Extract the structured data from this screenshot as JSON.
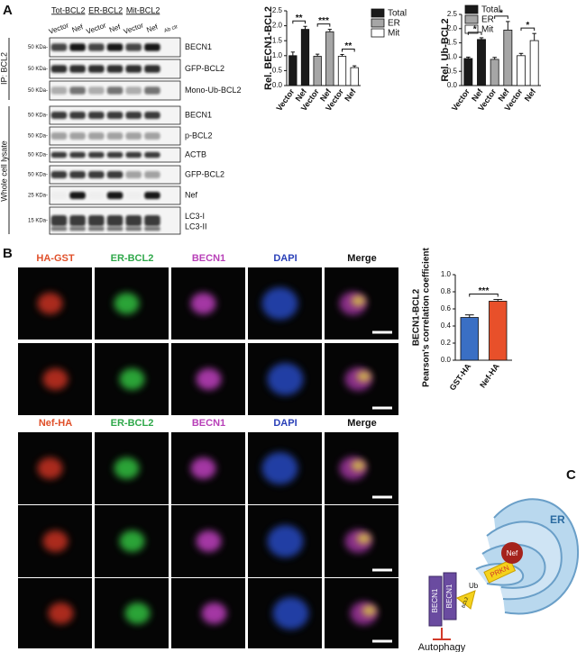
{
  "panel_labels": [
    "A",
    "B",
    "C"
  ],
  "blot": {
    "groups": [
      "Tot-BCL2",
      "ER-BCL2",
      "Mit-BCL2"
    ],
    "lanes": [
      "Vector",
      "Nef",
      "Vector",
      "Nef",
      "Vector",
      "Nef",
      "Ab ctr"
    ],
    "ip_label": "IP: BCL2",
    "lysate_label": "Whole cell lysate",
    "ip_rows": [
      {
        "mw": "50 KDa-",
        "label": "BECN1"
      },
      {
        "mw": "50 KDa-",
        "label": "GFP-BCL2"
      },
      {
        "mw": "50 KDa-",
        "label": "Mono-Ub-BCL2"
      }
    ],
    "lysate_rows": [
      {
        "mw": "50 KDa-",
        "label": "BECN1"
      },
      {
        "mw": "50 KDa-",
        "label": "p-BCL2"
      },
      {
        "mw": "50 KDa-",
        "label": "ACTB"
      },
      {
        "mw": "50 KDa-",
        "label": "GFP-BCL2"
      },
      {
        "mw": "25 KDa-",
        "label": "Nef"
      },
      {
        "mw": "15 KDa-",
        "label": "LC3-I"
      }
    ],
    "extra_label": "LC3-II"
  },
  "chart_data": [
    {
      "type": "bar",
      "ylabel": "Rel. BECN1-BCL2",
      "categories": [
        "Vector",
        "Nef",
        "Vector",
        "Nef",
        "Vector",
        "Nef"
      ],
      "series": [
        {
          "name": "Total",
          "color": "#1a1a1a",
          "values": [
            1.0,
            1.88,
            null,
            null,
            null,
            null
          ],
          "errors": [
            0.12,
            0.1,
            null,
            null,
            null,
            null
          ]
        },
        {
          "name": "ER",
          "color": "#a6a6a6",
          "values": [
            null,
            null,
            0.98,
            1.8,
            null,
            null
          ],
          "errors": [
            null,
            null,
            0.07,
            0.08,
            null,
            null
          ]
        },
        {
          "name": "Mit",
          "color": "#ffffff",
          "values": [
            null,
            null,
            null,
            null,
            0.98,
            0.6
          ],
          "errors": [
            null,
            null,
            null,
            null,
            0.06,
            0.06
          ]
        }
      ],
      "ylim": [
        0,
        2.5
      ],
      "yticks": [
        {
          "value": 0,
          "label": "0.0"
        },
        0.5,
        {
          "value": 1,
          "label": "1.0"
        },
        1.5,
        {
          "value": 2,
          "label": "2.0"
        },
        2.5
      ],
      "annotations": [
        "**",
        "***",
        "**"
      ]
    },
    {
      "type": "bar",
      "ylabel": "Rel. Ub-BCL2",
      "categories": [
        "Vector",
        "Nef",
        "Vector",
        "Nef",
        "Vector",
        "Nef"
      ],
      "series": [
        {
          "name": "Total",
          "color": "#1a1a1a",
          "values": [
            0.95,
            1.62,
            null,
            null,
            null,
            null
          ],
          "errors": [
            0.05,
            0.06,
            null,
            null,
            null,
            null
          ]
        },
        {
          "name": "ER",
          "color": "#a6a6a6",
          "values": [
            null,
            null,
            0.92,
            1.95,
            null,
            null
          ],
          "errors": [
            null,
            null,
            0.07,
            0.3,
            null,
            null
          ]
        },
        {
          "name": "Mit",
          "color": "#ffffff",
          "values": [
            null,
            null,
            null,
            null,
            1.05,
            1.58
          ],
          "errors": [
            null,
            null,
            null,
            null,
            0.08,
            0.25
          ]
        }
      ],
      "ylim": [
        0,
        2.5
      ],
      "yticks": [
        {
          "value": 0,
          "label": "0.0"
        },
        0.5,
        {
          "value": 1,
          "label": "1.0"
        },
        1.5,
        {
          "value": 2,
          "label": "2.0"
        },
        2.5
      ],
      "annotations": [
        "*",
        "*",
        "*"
      ]
    },
    {
      "type": "bar",
      "ylabel": [
        "BECN1-BCL2",
        "Pearson's correlation coefficient"
      ],
      "categories": [
        "GST-HA",
        "Nef-HA"
      ],
      "values": [
        0.5,
        0.69
      ],
      "errors": [
        0.03,
        0.02
      ],
      "colors": [
        "#3a6fc4",
        "#e8502a"
      ],
      "ylim": [
        0,
        1.0
      ],
      "yticks": [
        {
          "value": 0,
          "label": "0.0"
        },
        0.2,
        0.4,
        0.6,
        0.8,
        {
          "value": 1,
          "label": "1.0"
        }
      ],
      "annotations": [
        "***"
      ]
    }
  ],
  "micrographs": [
    {
      "headers": [
        {
          "text": "HA-GST",
          "color": "#e0502a"
        },
        {
          "text": "ER-BCL2",
          "color": "#2fa84a"
        },
        {
          "text": "BECN1",
          "color": "#b840b8"
        },
        {
          "text": "DAPI",
          "color": "#2a40b8"
        },
        {
          "text": "Merge",
          "color": "#111111"
        }
      ]
    },
    {
      "headers": [
        {
          "text": "Nef-HA",
          "color": "#e0502a"
        },
        {
          "text": "ER-BCL2",
          "color": "#2fa84a"
        },
        {
          "text": "BECN1",
          "color": "#b840b8"
        },
        {
          "text": "DAPI",
          "color": "#2a40b8"
        },
        {
          "text": "Merge",
          "color": "#111111"
        }
      ]
    }
  ],
  "model": {
    "er": "ER",
    "nef": "Nef",
    "prkn": "PRKN",
    "ub": "Ub",
    "becn1": [
      "BECN1",
      "BECN1"
    ],
    "bcl2": "BCL2",
    "outcome": "Autophagy"
  }
}
